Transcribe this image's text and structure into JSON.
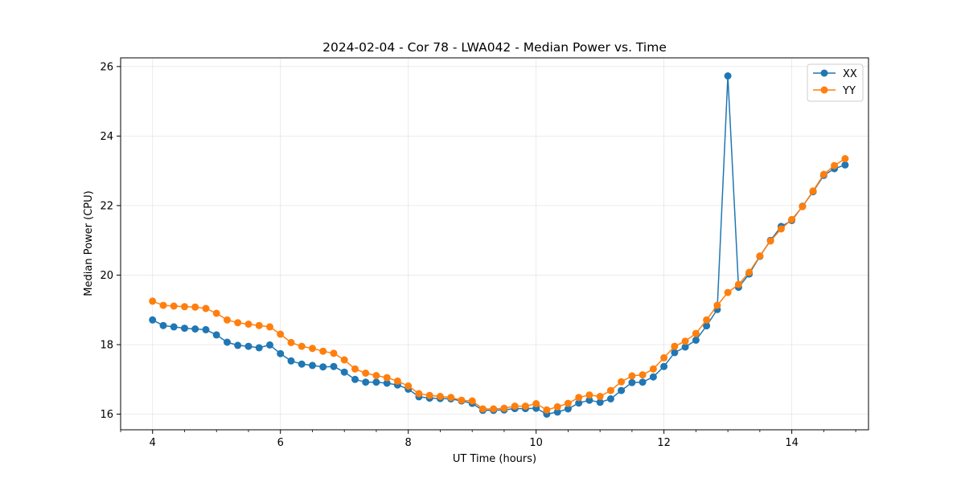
{
  "chart_data": {
    "type": "line",
    "title": "2024-02-04 - Cor 78 - LWA042 - Median Power vs. Time",
    "xlabel": "UT Time (hours)",
    "ylabel": "Median Power (CPU)",
    "xlim": [
      3.5,
      15.2
    ],
    "ylim": [
      15.55,
      26.25
    ],
    "xticks": [
      4,
      6,
      8,
      10,
      12,
      14
    ],
    "xtick_labels": [
      "4",
      "6",
      "8",
      "10",
      "12",
      "14"
    ],
    "yticks": [
      16,
      18,
      20,
      22,
      24,
      26
    ],
    "ytick_labels": [
      "16",
      "18",
      "20",
      "22",
      "24",
      "26"
    ],
    "grid": true,
    "legend_position": "top-right",
    "x": [
      4.0,
      4.1667,
      4.3333,
      4.5,
      4.6667,
      4.8333,
      5.0,
      5.1667,
      5.3333,
      5.5,
      5.6667,
      5.8333,
      6.0,
      6.1667,
      6.3333,
      6.5,
      6.6667,
      6.8333,
      7.0,
      7.1667,
      7.3333,
      7.5,
      7.6667,
      7.8333,
      8.0,
      8.1667,
      8.3333,
      8.5,
      8.6667,
      8.8333,
      9.0,
      9.1667,
      9.3333,
      9.5,
      9.6667,
      9.8333,
      10.0,
      10.1667,
      10.3333,
      10.5,
      10.6667,
      10.8333,
      11.0,
      11.1667,
      11.3333,
      11.5,
      11.6667,
      11.8333,
      12.0,
      12.1667,
      12.3333,
      12.5,
      12.6667,
      12.8333,
      13.0,
      13.1667,
      13.3333,
      13.5,
      13.6667,
      13.8333,
      14.0,
      14.1667,
      14.3333,
      14.5,
      14.6667,
      14.8333
    ],
    "series": [
      {
        "name": "XX",
        "color": "#1f77b4",
        "values": [
          18.71,
          18.55,
          18.51,
          18.47,
          18.45,
          18.43,
          18.28,
          18.07,
          17.98,
          17.95,
          17.91,
          17.99,
          17.74,
          17.53,
          17.44,
          17.4,
          17.36,
          17.37,
          17.21,
          17.0,
          16.92,
          16.92,
          16.89,
          16.84,
          16.72,
          16.5,
          16.46,
          16.45,
          16.44,
          16.38,
          16.31,
          16.11,
          16.11,
          16.12,
          16.16,
          16.16,
          16.17,
          16.0,
          16.06,
          16.15,
          16.32,
          16.4,
          16.34,
          16.44,
          16.68,
          16.91,
          16.92,
          17.07,
          17.37,
          17.77,
          17.93,
          18.13,
          18.54,
          19.01,
          25.73,
          19.65,
          20.03,
          20.54,
          21.0,
          21.4,
          21.57,
          21.98,
          22.4,
          22.87,
          23.06,
          23.17
        ]
      },
      {
        "name": "YY",
        "color": "#ff7f0e",
        "values": [
          19.25,
          19.13,
          19.11,
          19.09,
          19.08,
          19.04,
          18.9,
          18.71,
          18.63,
          18.59,
          18.55,
          18.51,
          18.3,
          18.06,
          17.95,
          17.89,
          17.81,
          17.75,
          17.56,
          17.3,
          17.18,
          17.11,
          17.05,
          16.95,
          16.81,
          16.59,
          16.54,
          16.51,
          16.48,
          16.4,
          16.38,
          16.15,
          16.15,
          16.17,
          16.23,
          16.23,
          16.3,
          16.12,
          16.21,
          16.31,
          16.48,
          16.55,
          16.51,
          16.68,
          16.93,
          17.1,
          17.13,
          17.3,
          17.62,
          17.95,
          18.1,
          18.32,
          18.71,
          19.13,
          19.5,
          19.73,
          20.08,
          20.55,
          20.98,
          21.33,
          21.6,
          21.97,
          22.42,
          22.9,
          23.15,
          23.35
        ]
      }
    ]
  }
}
